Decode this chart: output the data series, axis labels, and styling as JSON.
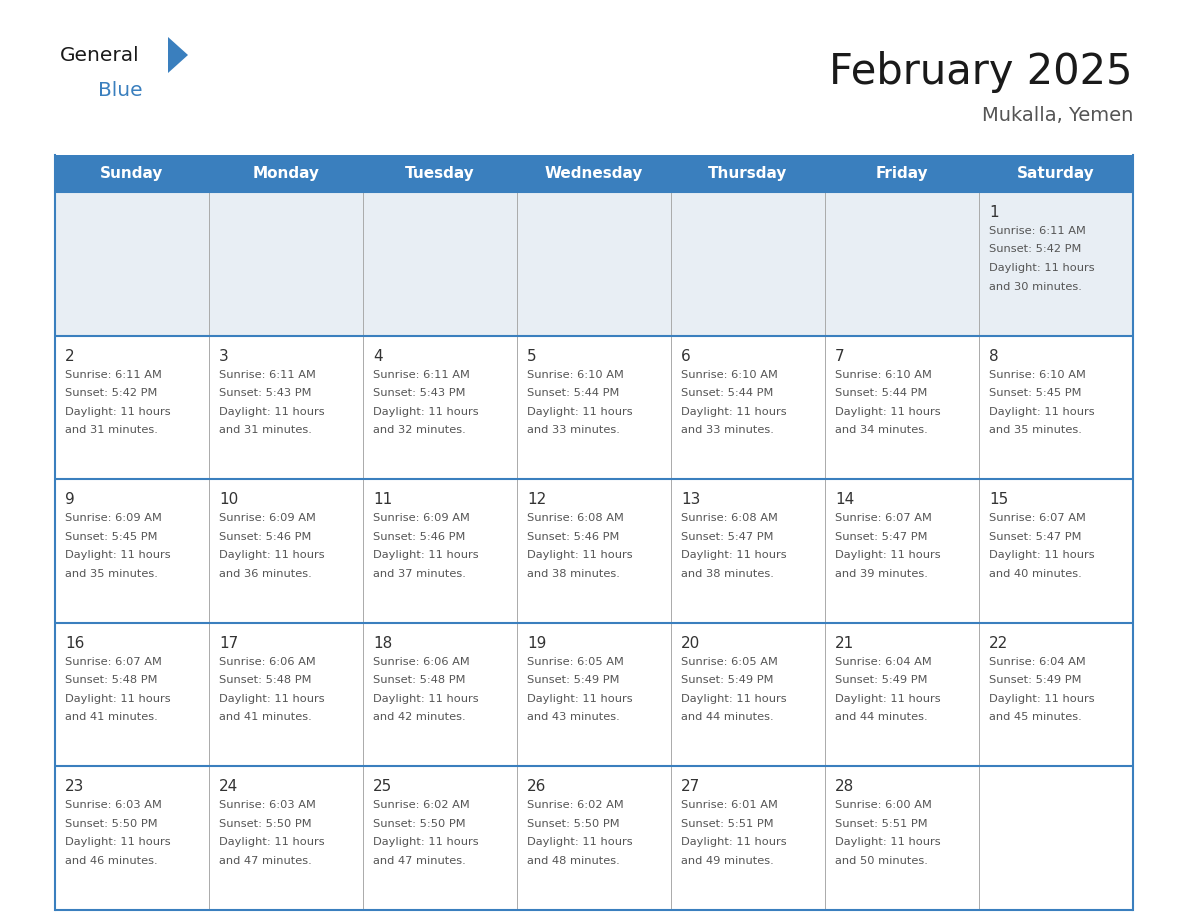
{
  "title": "February 2025",
  "subtitle": "Mukalla, Yemen",
  "days_of_week": [
    "Sunday",
    "Monday",
    "Tuesday",
    "Wednesday",
    "Thursday",
    "Friday",
    "Saturday"
  ],
  "header_bg_color": "#3a7fbe",
  "header_text_color": "#ffffff",
  "row1_bg_color": "#e8eef4",
  "row_bg_color": "#ffffff",
  "border_color": "#3a7fbe",
  "col_line_color": "#aaaaaa",
  "day_num_color": "#333333",
  "text_color": "#555555",
  "title_color": "#1a1a1a",
  "subtitle_color": "#555555",
  "logo_general_color": "#1a1a1a",
  "logo_blue_color": "#3a7fbe",
  "logo_triangle_color": "#3a7fbe",
  "calendar_data": [
    [
      {
        "day": null,
        "sunrise": null,
        "sunset": null,
        "daylight": null
      },
      {
        "day": null,
        "sunrise": null,
        "sunset": null,
        "daylight": null
      },
      {
        "day": null,
        "sunrise": null,
        "sunset": null,
        "daylight": null
      },
      {
        "day": null,
        "sunrise": null,
        "sunset": null,
        "daylight": null
      },
      {
        "day": null,
        "sunrise": null,
        "sunset": null,
        "daylight": null
      },
      {
        "day": null,
        "sunrise": null,
        "sunset": null,
        "daylight": null
      },
      {
        "day": 1,
        "sunrise": "6:11 AM",
        "sunset": "5:42 PM",
        "daylight": "11 hours and 30 minutes."
      }
    ],
    [
      {
        "day": 2,
        "sunrise": "6:11 AM",
        "sunset": "5:42 PM",
        "daylight": "11 hours and 31 minutes."
      },
      {
        "day": 3,
        "sunrise": "6:11 AM",
        "sunset": "5:43 PM",
        "daylight": "11 hours and 31 minutes."
      },
      {
        "day": 4,
        "sunrise": "6:11 AM",
        "sunset": "5:43 PM",
        "daylight": "11 hours and 32 minutes."
      },
      {
        "day": 5,
        "sunrise": "6:10 AM",
        "sunset": "5:44 PM",
        "daylight": "11 hours and 33 minutes."
      },
      {
        "day": 6,
        "sunrise": "6:10 AM",
        "sunset": "5:44 PM",
        "daylight": "11 hours and 33 minutes."
      },
      {
        "day": 7,
        "sunrise": "6:10 AM",
        "sunset": "5:44 PM",
        "daylight": "11 hours and 34 minutes."
      },
      {
        "day": 8,
        "sunrise": "6:10 AM",
        "sunset": "5:45 PM",
        "daylight": "11 hours and 35 minutes."
      }
    ],
    [
      {
        "day": 9,
        "sunrise": "6:09 AM",
        "sunset": "5:45 PM",
        "daylight": "11 hours and 35 minutes."
      },
      {
        "day": 10,
        "sunrise": "6:09 AM",
        "sunset": "5:46 PM",
        "daylight": "11 hours and 36 minutes."
      },
      {
        "day": 11,
        "sunrise": "6:09 AM",
        "sunset": "5:46 PM",
        "daylight": "11 hours and 37 minutes."
      },
      {
        "day": 12,
        "sunrise": "6:08 AM",
        "sunset": "5:46 PM",
        "daylight": "11 hours and 38 minutes."
      },
      {
        "day": 13,
        "sunrise": "6:08 AM",
        "sunset": "5:47 PM",
        "daylight": "11 hours and 38 minutes."
      },
      {
        "day": 14,
        "sunrise": "6:07 AM",
        "sunset": "5:47 PM",
        "daylight": "11 hours and 39 minutes."
      },
      {
        "day": 15,
        "sunrise": "6:07 AM",
        "sunset": "5:47 PM",
        "daylight": "11 hours and 40 minutes."
      }
    ],
    [
      {
        "day": 16,
        "sunrise": "6:07 AM",
        "sunset": "5:48 PM",
        "daylight": "11 hours and 41 minutes."
      },
      {
        "day": 17,
        "sunrise": "6:06 AM",
        "sunset": "5:48 PM",
        "daylight": "11 hours and 41 minutes."
      },
      {
        "day": 18,
        "sunrise": "6:06 AM",
        "sunset": "5:48 PM",
        "daylight": "11 hours and 42 minutes."
      },
      {
        "day": 19,
        "sunrise": "6:05 AM",
        "sunset": "5:49 PM",
        "daylight": "11 hours and 43 minutes."
      },
      {
        "day": 20,
        "sunrise": "6:05 AM",
        "sunset": "5:49 PM",
        "daylight": "11 hours and 44 minutes."
      },
      {
        "day": 21,
        "sunrise": "6:04 AM",
        "sunset": "5:49 PM",
        "daylight": "11 hours and 44 minutes."
      },
      {
        "day": 22,
        "sunrise": "6:04 AM",
        "sunset": "5:49 PM",
        "daylight": "11 hours and 45 minutes."
      }
    ],
    [
      {
        "day": 23,
        "sunrise": "6:03 AM",
        "sunset": "5:50 PM",
        "daylight": "11 hours and 46 minutes."
      },
      {
        "day": 24,
        "sunrise": "6:03 AM",
        "sunset": "5:50 PM",
        "daylight": "11 hours and 47 minutes."
      },
      {
        "day": 25,
        "sunrise": "6:02 AM",
        "sunset": "5:50 PM",
        "daylight": "11 hours and 47 minutes."
      },
      {
        "day": 26,
        "sunrise": "6:02 AM",
        "sunset": "5:50 PM",
        "daylight": "11 hours and 48 minutes."
      },
      {
        "day": 27,
        "sunrise": "6:01 AM",
        "sunset": "5:51 PM",
        "daylight": "11 hours and 49 minutes."
      },
      {
        "day": 28,
        "sunrise": "6:00 AM",
        "sunset": "5:51 PM",
        "daylight": "11 hours and 50 minutes."
      },
      {
        "day": null,
        "sunrise": null,
        "sunset": null,
        "daylight": null
      }
    ]
  ]
}
